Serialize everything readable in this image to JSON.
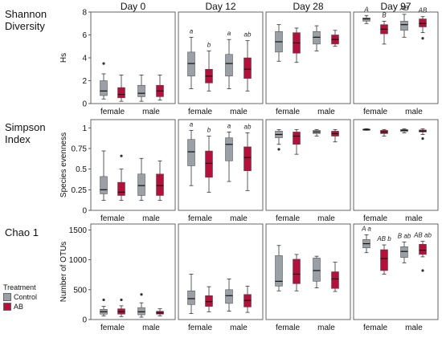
{
  "chart_data": {
    "type": "box",
    "columns": [
      "Day 0",
      "Day 12",
      "Day 28",
      "Day 97"
    ],
    "categories": [
      "female",
      "male"
    ],
    "series": [
      {
        "name": "Control",
        "color": "#9aa0a6"
      },
      {
        "name": "AB",
        "color": "#b3103b"
      }
    ],
    "legend": {
      "title": "Treatment",
      "placement": "bottom-left"
    },
    "rows": [
      {
        "label_lines": [
          "Shannon",
          "Diversity"
        ],
        "ylabel": "Hs",
        "ylim": [
          0,
          8
        ],
        "yticks": [
          0,
          2,
          4,
          6,
          8
        ],
        "tick_labels": [
          "0",
          "2",
          "4",
          "6",
          "8"
        ],
        "panels": [
          {
            "boxes": [
              {
                "min": 0.4,
                "q1": 0.7,
                "med": 1.1,
                "q3": 2.0,
                "max": 2.6,
                "outliers": [
                  3.5
                ]
              },
              {
                "min": 0.2,
                "q1": 0.5,
                "med": 0.8,
                "q3": 1.4,
                "max": 2.5,
                "outliers": []
              },
              {
                "min": 0.2,
                "q1": 0.6,
                "med": 0.9,
                "q3": 1.6,
                "max": 2.5,
                "outliers": []
              },
              {
                "min": 0.3,
                "q1": 0.6,
                "med": 1.1,
                "q3": 1.6,
                "max": 2.5,
                "outliers": []
              }
            ],
            "letters": []
          },
          {
            "boxes": [
              {
                "min": 1.3,
                "q1": 2.4,
                "med": 3.5,
                "q3": 4.5,
                "max": 5.8,
                "outliers": []
              },
              {
                "min": 1.1,
                "q1": 1.8,
                "med": 2.4,
                "q3": 3.0,
                "max": 4.6,
                "outliers": []
              },
              {
                "min": 1.3,
                "q1": 2.4,
                "med": 3.5,
                "q3": 4.3,
                "max": 5.6,
                "outliers": []
              },
              {
                "min": 1.1,
                "q1": 2.2,
                "med": 3.0,
                "q3": 4.0,
                "max": 5.5,
                "outliers": []
              }
            ],
            "letters": [
              "a",
              "b",
              "a",
              "ab"
            ]
          },
          {
            "boxes": [
              {
                "min": 3.7,
                "q1": 4.5,
                "med": 5.4,
                "q3": 6.3,
                "max": 6.9,
                "outliers": []
              },
              {
                "min": 3.6,
                "q1": 4.4,
                "med": 5.3,
                "q3": 6.2,
                "max": 6.6,
                "outliers": []
              },
              {
                "min": 4.6,
                "q1": 5.2,
                "med": 5.8,
                "q3": 6.3,
                "max": 6.8,
                "outliers": []
              },
              {
                "min": 5.0,
                "q1": 5.2,
                "med": 5.6,
                "q3": 6.0,
                "max": 6.4,
                "outliers": []
              }
            ],
            "letters": []
          },
          {
            "boxes": [
              {
                "min": 7.0,
                "q1": 7.2,
                "med": 7.4,
                "q3": 7.5,
                "max": 7.7,
                "outliers": []
              },
              {
                "min": 5.2,
                "q1": 6.1,
                "med": 6.5,
                "q3": 6.9,
                "max": 7.2,
                "outliers": []
              },
              {
                "min": 5.8,
                "q1": 6.4,
                "med": 6.9,
                "q3": 7.2,
                "max": 7.8,
                "outliers": []
              },
              {
                "min": 6.2,
                "q1": 6.7,
                "med": 7.0,
                "q3": 7.4,
                "max": 7.6,
                "outliers": [
                  5.7
                ]
              }
            ],
            "letters": [
              "A",
              "B",
              "AB",
              "AB"
            ]
          }
        ]
      },
      {
        "label_lines": [
          "Simpson",
          "Index"
        ],
        "ylabel": "Species evenness",
        "ylim": [
          0,
          1.1
        ],
        "yticks": [
          0,
          0.25,
          0.5,
          0.75,
          1
        ],
        "tick_labels": [
          "0",
          "0.25",
          "0.5",
          "0.75",
          "1"
        ],
        "panels": [
          {
            "boxes": [
              {
                "min": 0.12,
                "q1": 0.2,
                "med": 0.25,
                "q3": 0.41,
                "max": 0.72,
                "outliers": []
              },
              {
                "min": 0.12,
                "q1": 0.18,
                "med": 0.22,
                "q3": 0.34,
                "max": 0.5,
                "outliers": [
                  0.66
                ]
              },
              {
                "min": 0.12,
                "q1": 0.18,
                "med": 0.3,
                "q3": 0.44,
                "max": 0.63,
                "outliers": []
              },
              {
                "min": 0.12,
                "q1": 0.18,
                "med": 0.3,
                "q3": 0.44,
                "max": 0.6,
                "outliers": []
              }
            ],
            "letters": []
          },
          {
            "boxes": [
              {
                "min": 0.3,
                "q1": 0.54,
                "med": 0.71,
                "q3": 0.86,
                "max": 0.97,
                "outliers": []
              },
              {
                "min": 0.22,
                "q1": 0.4,
                "med": 0.57,
                "q3": 0.72,
                "max": 0.9,
                "outliers": []
              },
              {
                "min": 0.35,
                "q1": 0.6,
                "med": 0.8,
                "q3": 0.88,
                "max": 0.95,
                "outliers": []
              },
              {
                "min": 0.24,
                "q1": 0.48,
                "med": 0.64,
                "q3": 0.77,
                "max": 0.94,
                "outliers": []
              }
            ],
            "letters": [
              "a",
              "b",
              "a",
              "ab"
            ]
          },
          {
            "boxes": [
              {
                "min": 0.8,
                "q1": 0.88,
                "med": 0.92,
                "q3": 0.96,
                "max": 0.98,
                "outliers": [
                  0.74
                ]
              },
              {
                "min": 0.68,
                "q1": 0.8,
                "med": 0.9,
                "q3": 0.95,
                "max": 0.98,
                "outliers": []
              },
              {
                "min": 0.9,
                "q1": 0.93,
                "med": 0.95,
                "q3": 0.97,
                "max": 0.98,
                "outliers": []
              },
              {
                "min": 0.83,
                "q1": 0.9,
                "med": 0.93,
                "q3": 0.96,
                "max": 0.98,
                "outliers": []
              }
            ],
            "letters": []
          },
          {
            "boxes": [
              {
                "min": 0.97,
                "q1": 0.975,
                "med": 0.98,
                "q3": 0.985,
                "max": 0.99,
                "outliers": []
              },
              {
                "min": 0.9,
                "q1": 0.93,
                "med": 0.95,
                "q3": 0.97,
                "max": 0.98,
                "outliers": []
              },
              {
                "min": 0.94,
                "q1": 0.955,
                "med": 0.97,
                "q3": 0.98,
                "max": 0.99,
                "outliers": []
              },
              {
                "min": 0.92,
                "q1": 0.95,
                "med": 0.96,
                "q3": 0.975,
                "max": 0.99,
                "outliers": [
                  0.87
                ]
              }
            ],
            "letters": []
          }
        ]
      },
      {
        "label_lines": [
          "Chao 1"
        ],
        "ylabel": "Number of OTUs",
        "ylim": [
          0,
          1600
        ],
        "yticks": [
          0,
          500,
          1000,
          1500
        ],
        "tick_labels": [
          "0",
          "500",
          "1000",
          "1500"
        ],
        "panels": [
          {
            "boxes": [
              {
                "min": 60,
                "q1": 90,
                "med": 130,
                "q3": 170,
                "max": 220,
                "outliers": [
                  330
                ]
              },
              {
                "min": 50,
                "q1": 90,
                "med": 130,
                "q3": 180,
                "max": 230,
                "outliers": [
                  330
                ]
              },
              {
                "min": 40,
                "q1": 80,
                "med": 130,
                "q3": 200,
                "max": 280,
                "outliers": [
                  420
                ]
              },
              {
                "min": 60,
                "q1": 90,
                "med": 110,
                "q3": 140,
                "max": 180,
                "outliers": []
              }
            ],
            "letters": []
          },
          {
            "boxes": [
              {
                "min": 100,
                "q1": 250,
                "med": 350,
                "q3": 480,
                "max": 760,
                "outliers": []
              },
              {
                "min": 130,
                "q1": 220,
                "med": 300,
                "q3": 400,
                "max": 550,
                "outliers": []
              },
              {
                "min": 140,
                "q1": 270,
                "med": 400,
                "q3": 500,
                "max": 680,
                "outliers": []
              },
              {
                "min": 120,
                "q1": 210,
                "med": 320,
                "q3": 420,
                "max": 560,
                "outliers": []
              }
            ],
            "letters": []
          },
          {
            "boxes": [
              {
                "min": 480,
                "q1": 560,
                "med": 640,
                "q3": 1070,
                "max": 1240,
                "outliers": []
              },
              {
                "min": 480,
                "q1": 600,
                "med": 760,
                "q3": 1010,
                "max": 1090,
                "outliers": []
              },
              {
                "min": 530,
                "q1": 640,
                "med": 820,
                "q3": 1030,
                "max": 1060,
                "outliers": []
              },
              {
                "min": 470,
                "q1": 520,
                "med": 680,
                "q3": 800,
                "max": 960,
                "outliers": []
              }
            ],
            "letters": []
          },
          {
            "boxes": [
              {
                "min": 1120,
                "q1": 1200,
                "med": 1270,
                "q3": 1340,
                "max": 1420,
                "outliers": []
              },
              {
                "min": 760,
                "q1": 820,
                "med": 1020,
                "q3": 1170,
                "max": 1250,
                "outliers": []
              },
              {
                "min": 950,
                "q1": 1040,
                "med": 1140,
                "q3": 1220,
                "max": 1300,
                "outliers": []
              },
              {
                "min": 1050,
                "q1": 1090,
                "med": 1160,
                "q3": 1260,
                "max": 1310,
                "outliers": [
                  820
                ]
              }
            ],
            "letters": [
              "A a",
              "AB b",
              "B ab",
              "AB ab"
            ]
          }
        ]
      }
    ]
  }
}
